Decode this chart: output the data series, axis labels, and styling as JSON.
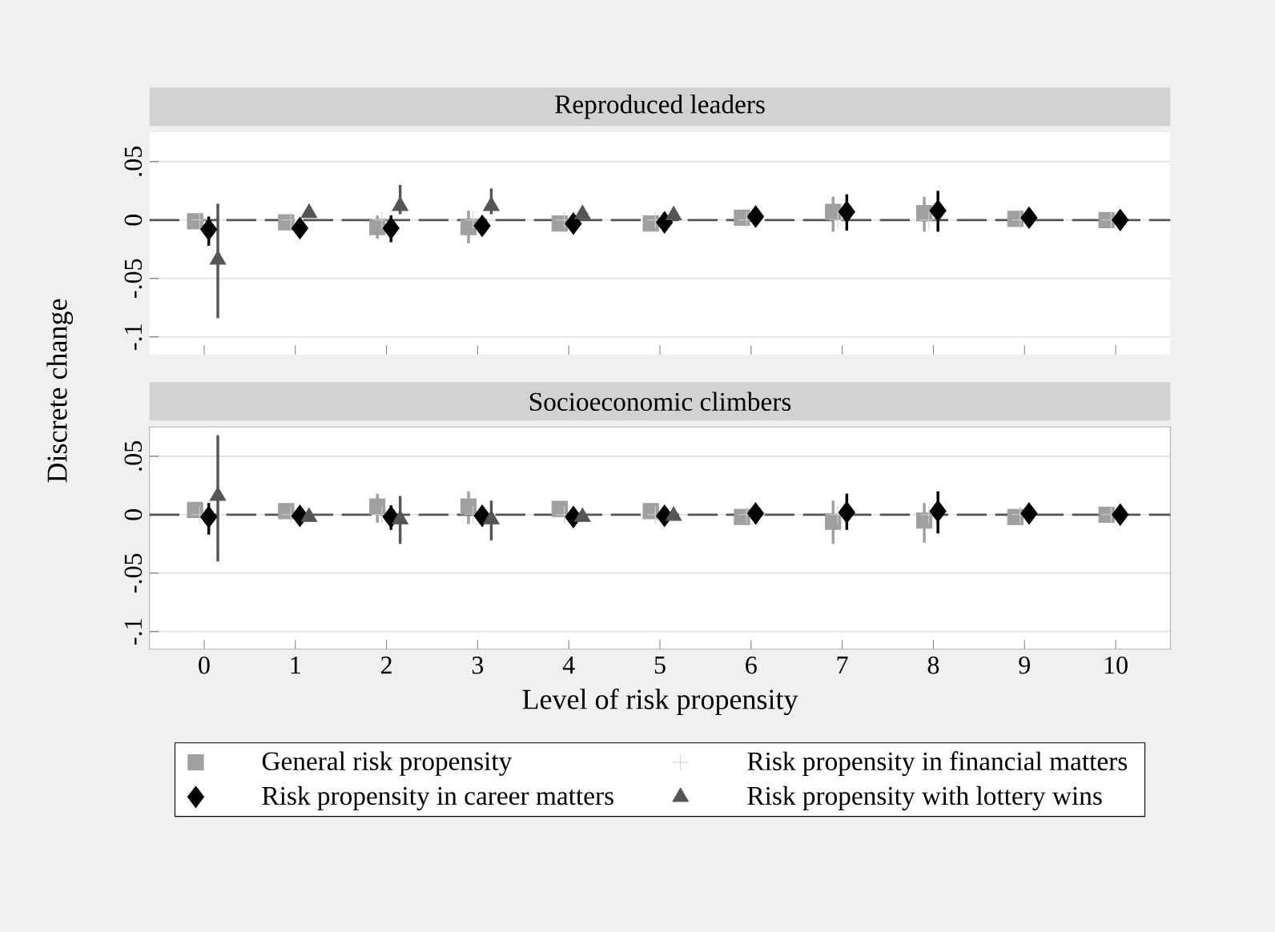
{
  "chart_data": [
    {
      "type": "scatter",
      "title": "Reproduced leaders",
      "xlim": [
        -0.6,
        10.6
      ],
      "ylim": [
        -0.115,
        0.075
      ],
      "xticks": [
        0,
        1,
        2,
        3,
        4,
        5,
        6,
        7,
        8,
        9,
        10
      ],
      "yticks": [
        {
          "value": 0.05,
          "label": ".05"
        },
        0,
        {
          "value": -0.05,
          "label": "-.05"
        },
        {
          "value": -0.1,
          "label": "-.1"
        }
      ],
      "tick_labels": "y",
      "grid": "y",
      "ref_lines": [
        {
          "axis": "y",
          "value": 0,
          "line_style": "dashed",
          "color": "#555555"
        }
      ],
      "series": [
        {
          "color": "#a0a0a0",
          "marker": "square",
          "x": [
            -0.1,
            0.9,
            1.9,
            2.9,
            3.9,
            4.9,
            5.9,
            6.9,
            7.9,
            8.9,
            9.9
          ],
          "values": [
            -0.001,
            -0.002,
            -0.006,
            -0.006,
            -0.003,
            -0.003,
            0.002,
            0.007,
            0.006,
            0.001,
            0
          ],
          "errors": [
            null,
            null,
            [
              -0.016,
              0.004
            ],
            [
              -0.02,
              0.008
            ],
            null,
            null,
            null,
            [
              -0.01,
              0.02
            ],
            [
              -0.01,
              0.02
            ],
            null,
            null
          ]
        },
        {
          "color": "#d0d0d0",
          "marker": "cross",
          "x": [
            -0.05,
            0.95,
            1.95,
            2.95,
            3.95,
            4.95,
            5.95,
            6.95,
            7.95,
            8.95,
            9.95
          ],
          "values": [
            0,
            0,
            0,
            0,
            0,
            0,
            0,
            0,
            0,
            0,
            0
          ]
        },
        {
          "color": "#000000",
          "marker": "diamond",
          "x": [
            0.05,
            1.05,
            2.05,
            3.05,
            4.05,
            5.05,
            6.05,
            7.05,
            8.05,
            9.05,
            10.05
          ],
          "values": [
            -0.008,
            -0.007,
            -0.007,
            -0.005,
            -0.003,
            -0.002,
            0.003,
            0.007,
            0.008,
            0.002,
            0
          ],
          "errors": [
            [
              -0.022,
              0.003
            ],
            null,
            [
              -0.019,
              0.004
            ],
            null,
            null,
            null,
            null,
            [
              -0.009,
              0.022
            ],
            [
              -0.01,
              0.025
            ],
            null,
            null
          ]
        },
        {
          "color": "#555555",
          "marker": "triangle",
          "x": [
            0.15,
            1.15,
            2.15,
            3.15,
            4.15,
            5.15
          ],
          "values": [
            -0.034,
            0.006,
            0.012,
            0.012,
            0.005,
            0.004
          ],
          "errors": [
            [
              -0.084,
              0.014
            ],
            null,
            [
              0.005,
              0.03
            ],
            [
              0.005,
              0.027
            ],
            null,
            null
          ]
        }
      ]
    },
    {
      "type": "scatter",
      "title": "Socioeconomic climbers",
      "xlabel": "Level of risk propensity",
      "ylabel": "Discrete change",
      "xlim": [
        -0.6,
        10.6
      ],
      "ylim": [
        -0.115,
        0.075
      ],
      "xticks": [
        0,
        1,
        2,
        3,
        4,
        5,
        6,
        7,
        8,
        9,
        10
      ],
      "yticks": [
        {
          "value": 0.05,
          "label": ".05"
        },
        0,
        {
          "value": -0.05,
          "label": "-.05"
        },
        {
          "value": -0.1,
          "label": "-.1"
        }
      ],
      "grid": "y",
      "legend": "bottom",
      "ref_lines": [
        {
          "axis": "y",
          "value": 0,
          "line_style": "dashed",
          "color": "#555555"
        }
      ],
      "series": [
        {
          "name": "General risk propensity",
          "color": "#a0a0a0",
          "marker": "square",
          "x": [
            -0.1,
            0.9,
            1.9,
            2.9,
            3.9,
            4.9,
            5.9,
            6.9,
            7.9,
            8.9,
            9.9
          ],
          "values": [
            0.004,
            0.003,
            0.007,
            0.007,
            0.005,
            0.003,
            -0.002,
            -0.006,
            -0.005,
            -0.002,
            0
          ],
          "errors": [
            null,
            null,
            [
              -0.007,
              0.018
            ],
            [
              -0.008,
              0.02
            ],
            null,
            null,
            null,
            [
              -0.025,
              0.012
            ],
            [
              -0.024,
              0.01
            ],
            null,
            null
          ]
        },
        {
          "name": "Risk propensity in financial matters",
          "color": "#d0d0d0",
          "marker": "cross",
          "x": [
            -0.05,
            0.95,
            1.95,
            2.95,
            3.95,
            4.95,
            5.95,
            6.95,
            7.95,
            8.95,
            9.95
          ],
          "values": [
            0,
            0,
            0,
            0,
            0,
            0,
            0,
            0,
            0,
            0,
            0
          ]
        },
        {
          "name": "Risk propensity in career matters",
          "color": "#000000",
          "marker": "diamond",
          "x": [
            0.05,
            1.05,
            2.05,
            3.05,
            4.05,
            5.05,
            6.05,
            7.05,
            8.05,
            9.05,
            10.05
          ],
          "values": [
            -0.002,
            -0.001,
            -0.002,
            -0.001,
            -0.002,
            -0.001,
            0.001,
            0.002,
            0.003,
            0.001,
            0
          ],
          "errors": [
            [
              -0.017,
              0.01
            ],
            null,
            [
              -0.013,
              0.008
            ],
            null,
            null,
            null,
            null,
            [
              -0.013,
              0.018
            ],
            [
              -0.016,
              0.02
            ],
            null,
            null
          ]
        },
        {
          "name": "Risk propensity with lottery wins",
          "color": "#555555",
          "marker": "triangle",
          "x": [
            0.15,
            1.15,
            2.15,
            3.15,
            4.15,
            5.15
          ],
          "values": [
            0.016,
            -0.002,
            -0.004,
            -0.004,
            -0.002,
            -0.001
          ],
          "errors": [
            [
              -0.04,
              0.068
            ],
            null,
            [
              -0.025,
              0.016
            ],
            [
              -0.022,
              0.012
            ],
            null,
            null
          ]
        }
      ]
    }
  ]
}
